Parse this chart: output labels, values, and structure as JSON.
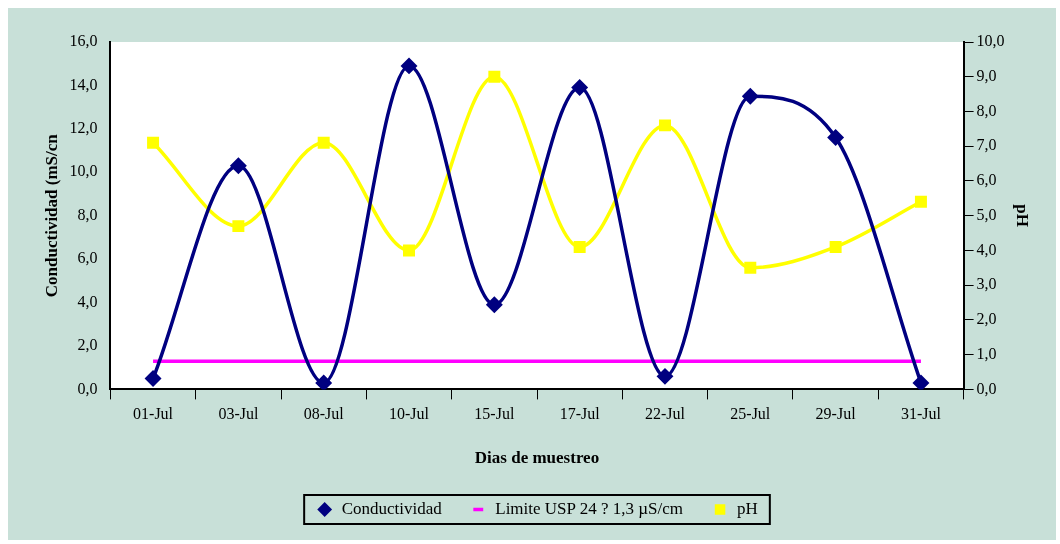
{
  "chart_data": {
    "type": "line",
    "xlabel": "Dias de muestreo",
    "ylabel": "Conductividad (mS/cn",
    "y2label": "pH",
    "categories": [
      "01-Jul",
      "03-Jul",
      "08-Jul",
      "10-Jul",
      "15-Jul",
      "17-Jul",
      "22-Jul",
      "25-Jul",
      "29-Jul",
      "31-Jul"
    ],
    "series": [
      {
        "name": "Conductividad",
        "color": "#000080",
        "marker": "diamond",
        "values": [
          0.5,
          10.3,
          0.3,
          14.9,
          3.9,
          13.9,
          0.6,
          13.5,
          11.6,
          0.3
        ]
      },
      {
        "name": "Limite USP 24 ? 1,3 µS/cm",
        "color": "#ff00ff",
        "marker": "none",
        "values": [
          1.3,
          1.3,
          1.3,
          1.3,
          1.3,
          1.3,
          1.3,
          1.3,
          1.3,
          1.3
        ]
      },
      {
        "name": "pH",
        "color": "#ffff00",
        "marker": "square",
        "axis": "y2",
        "values": [
          7.1,
          4.7,
          7.1,
          4.0,
          9.0,
          4.1,
          7.6,
          3.5,
          4.1,
          5.4
        ]
      }
    ],
    "ylim": [
      0,
      16
    ],
    "yticks": [
      {
        "value": 0,
        "label": "0,0"
      },
      {
        "value": 2,
        "label": "2,0"
      },
      {
        "value": 4,
        "label": "4,0"
      },
      {
        "value": 6,
        "label": "6,0"
      },
      {
        "value": 8,
        "label": "8,0"
      },
      {
        "value": 10,
        "label": "10,0"
      },
      {
        "value": 12,
        "label": "12,0"
      },
      {
        "value": 14,
        "label": "14,0"
      },
      {
        "value": 16,
        "label": "16,0"
      }
    ],
    "y2lim": [
      0,
      10
    ],
    "y2ticks": [
      {
        "value": 0,
        "label": "0,0"
      },
      {
        "value": 1,
        "label": "1,0"
      },
      {
        "value": 2,
        "label": "2,0"
      },
      {
        "value": 3,
        "label": "3,0"
      },
      {
        "value": 4,
        "label": "4,0"
      },
      {
        "value": 5,
        "label": "5,0"
      },
      {
        "value": 6,
        "label": "6,0"
      },
      {
        "value": 7,
        "label": "7,0"
      },
      {
        "value": 8,
        "label": "8,0"
      },
      {
        "value": 9,
        "label": "9,0"
      },
      {
        "value": 10,
        "label": "10,0"
      }
    ],
    "grid": false,
    "legend": "bottom",
    "line_style": "solid"
  }
}
